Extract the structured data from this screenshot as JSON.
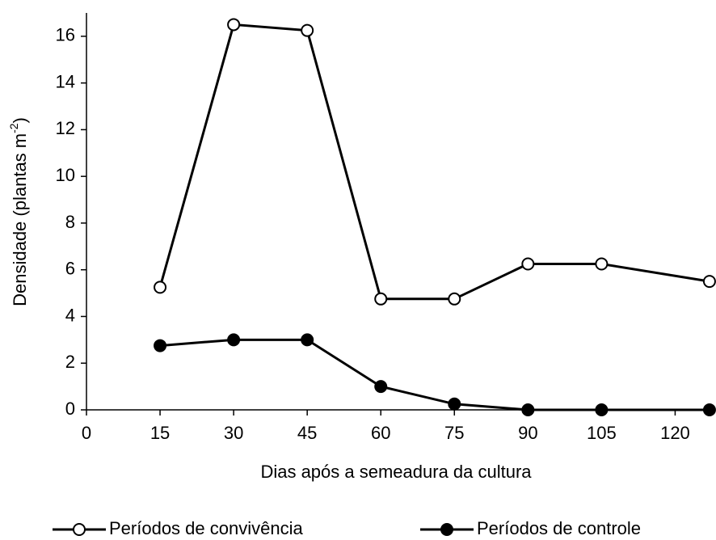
{
  "chart_data": {
    "type": "line",
    "xlabel": "Dias após a semeadura da cultura",
    "ylabel": {
      "text": "Densidade (plantas m",
      "superscript": "-2",
      "suffix": ")"
    },
    "x": [
      15,
      30,
      45,
      60,
      75,
      90,
      105,
      127
    ],
    "series": [
      {
        "name": "Períodos de convivência",
        "color": "#000000",
        "marker": "open",
        "values": [
          5.25,
          16.5,
          16.25,
          4.75,
          4.75,
          6.25,
          6.25,
          5.5
        ]
      },
      {
        "name": "Períodos de controle",
        "color": "#000000",
        "marker": "filled",
        "values": [
          2.75,
          3,
          3,
          1,
          0.25,
          0,
          0,
          0
        ]
      }
    ],
    "xlim": [
      0,
      128
    ],
    "xticks": [
      0,
      15,
      30,
      45,
      60,
      75,
      90,
      105,
      120
    ],
    "ylim": [
      0,
      17
    ],
    "yticks": [
      0,
      2,
      4,
      6,
      8,
      10,
      12,
      14,
      16
    ],
    "grid": false,
    "legend": "bottom"
  }
}
